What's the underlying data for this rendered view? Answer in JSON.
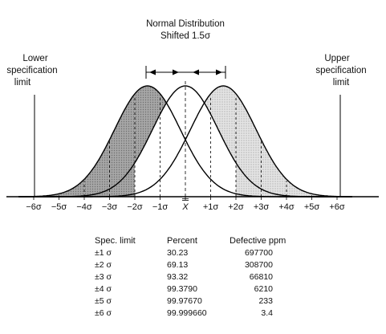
{
  "title": {
    "line1": "Normal Distribution",
    "line2": "Shifted 1.5σ"
  },
  "lower_limit": {
    "line1": "Lower",
    "line2": "specification",
    "line3": "limit"
  },
  "upper_limit": {
    "line1": "Upper",
    "line2": "specification",
    "line3": "limit"
  },
  "axis": {
    "ticks": [
      "−6σ",
      "−5σ",
      "−4σ",
      "−3σ",
      "−2σ",
      "−1σ",
      "X",
      "+1σ",
      "+2σ",
      "+3σ",
      "+4σ",
      "+5σ",
      "+6σ"
    ]
  },
  "curves": {
    "shift_sigma": 1.5,
    "left_fill": "#9a9a9a",
    "right_fill": "#d6d6d6"
  },
  "table": {
    "headers": [
      "Spec. limit",
      "Percent",
      "Defective ppm"
    ],
    "rows": [
      [
        "±1 σ",
        "30.23",
        "697700"
      ],
      [
        "±2 σ",
        "69.13",
        "308700"
      ],
      [
        "±3 σ",
        "93.32",
        "66810"
      ],
      [
        "±4 σ",
        "99.3790",
        "6210"
      ],
      [
        "±5 σ",
        "99.97670",
        "233"
      ],
      [
        "±6 σ",
        "99.999660",
        "3.4"
      ]
    ]
  }
}
